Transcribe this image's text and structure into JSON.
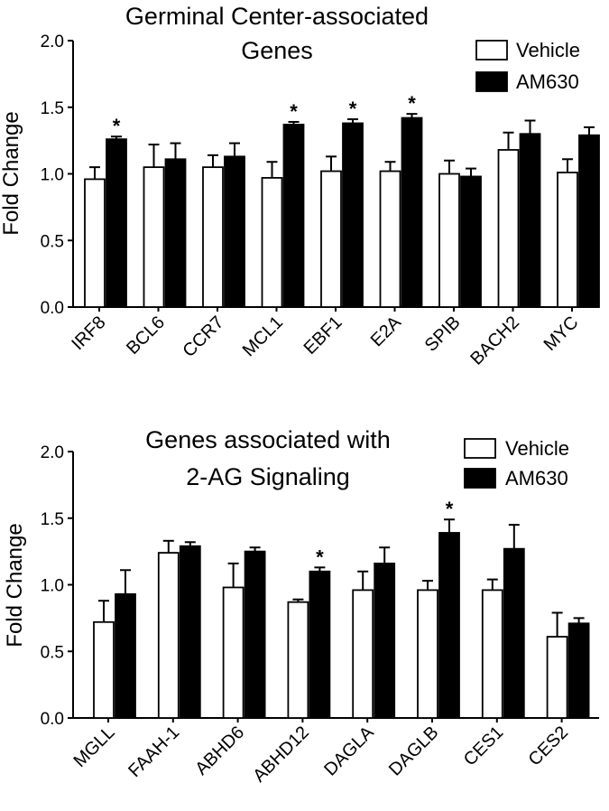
{
  "chart_data": [
    {
      "type": "bar",
      "title_lines": [
        "Germinal Center-associated",
        "Genes"
      ],
      "xlabel": "",
      "ylabel": "Fold Change",
      "ylim": [
        0,
        2.0
      ],
      "yticks": [
        "0.0",
        "0.5",
        "1.0",
        "1.5",
        "2.0"
      ],
      "categories": [
        "IRF8",
        "BCL6",
        "CCR7",
        "MCL1",
        "EBF1",
        "E2A",
        "SPIB",
        "BACH2",
        "MYC"
      ],
      "legend_position": "top-right",
      "series": [
        {
          "name": "Vehicle",
          "color": "#ffffff",
          "values": [
            0.96,
            1.05,
            1.05,
            0.97,
            1.02,
            1.02,
            1.0,
            1.18,
            1.01
          ],
          "errors": [
            0.09,
            0.17,
            0.09,
            0.12,
            0.11,
            0.07,
            0.1,
            0.13,
            0.1
          ]
        },
        {
          "name": "AM630",
          "color": "#000000",
          "values": [
            1.26,
            1.11,
            1.13,
            1.37,
            1.38,
            1.42,
            0.98,
            1.3,
            1.29
          ],
          "errors": [
            0.02,
            0.12,
            0.1,
            0.02,
            0.03,
            0.03,
            0.06,
            0.1,
            0.06
          ]
        }
      ],
      "significant": [
        0,
        3,
        4,
        5
      ],
      "significance_marker": "*"
    },
    {
      "type": "bar",
      "title_lines": [
        "Genes associated with",
        "2-AG Signaling"
      ],
      "xlabel": "",
      "ylabel": "Fold Change",
      "ylim": [
        0,
        2.0
      ],
      "yticks": [
        "0.0",
        "0.5",
        "1.0",
        "1.5",
        "2.0"
      ],
      "categories": [
        "MGLL",
        "FAAH-1",
        "ABHD6",
        "ABHD12",
        "DAGLA",
        "DAGLB",
        "CES1",
        "CES2"
      ],
      "legend_position": "top-right",
      "series": [
        {
          "name": "Vehicle",
          "color": "#ffffff",
          "values": [
            0.72,
            1.24,
            0.98,
            0.87,
            0.96,
            0.96,
            0.96,
            0.61
          ],
          "errors": [
            0.16,
            0.09,
            0.18,
            0.02,
            0.14,
            0.07,
            0.08,
            0.18
          ]
        },
        {
          "name": "AM630",
          "color": "#000000",
          "values": [
            0.93,
            1.29,
            1.25,
            1.1,
            1.16,
            1.39,
            1.27,
            0.71
          ],
          "errors": [
            0.18,
            0.03,
            0.03,
            0.03,
            0.12,
            0.1,
            0.18,
            0.04
          ]
        }
      ],
      "significant": [
        3,
        5
      ],
      "significance_marker": "*"
    }
  ]
}
